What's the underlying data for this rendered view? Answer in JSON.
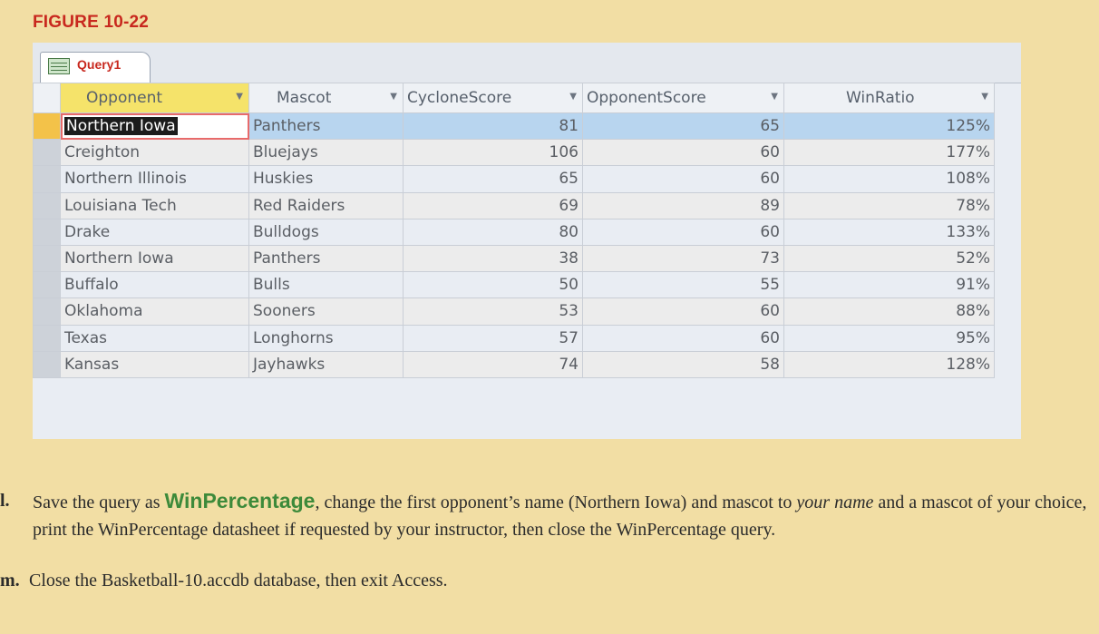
{
  "figure_label": "FIGURE 10-22",
  "tab": {
    "label": "Query1",
    "icon": "query-icon"
  },
  "columns": [
    {
      "label": "Opponent"
    },
    {
      "label": "Mascot"
    },
    {
      "label": "CycloneScore"
    },
    {
      "label": "OpponentScore"
    },
    {
      "label": "WinRatio"
    }
  ],
  "rows": [
    {
      "opponent": "Northern Iowa",
      "mascot": "Panthers",
      "cyclone": "81",
      "opp": "65",
      "ratio": "125%"
    },
    {
      "opponent": "Creighton",
      "mascot": "Bluejays",
      "cyclone": "106",
      "opp": "60",
      "ratio": "177%"
    },
    {
      "opponent": "Northern Illinois",
      "mascot": "Huskies",
      "cyclone": "65",
      "opp": "60",
      "ratio": "108%"
    },
    {
      "opponent": "Louisiana Tech",
      "mascot": "Red Raiders",
      "cyclone": "69",
      "opp": "89",
      "ratio": "78%"
    },
    {
      "opponent": "Drake",
      "mascot": "Bulldogs",
      "cyclone": "80",
      "opp": "60",
      "ratio": "133%"
    },
    {
      "opponent": "Northern Iowa",
      "mascot": "Panthers",
      "cyclone": "38",
      "opp": "73",
      "ratio": "52%"
    },
    {
      "opponent": "Buffalo",
      "mascot": "Bulls",
      "cyclone": "50",
      "opp": "55",
      "ratio": "91%"
    },
    {
      "opponent": "Oklahoma",
      "mascot": "Sooners",
      "cyclone": "53",
      "opp": "60",
      "ratio": "88%"
    },
    {
      "opponent": "Texas",
      "mascot": "Longhorns",
      "cyclone": "57",
      "opp": "60",
      "ratio": "95%"
    },
    {
      "opponent": "Kansas",
      "mascot": "Jayhawks",
      "cyclone": "74",
      "opp": "58",
      "ratio": "128%"
    }
  ],
  "instructions": {
    "l_marker": "l.",
    "l_pre": "Save the query as ",
    "l_highlight": "WinPercentage",
    "l_mid": ", change the first opponent’s name (Northern Iowa) and mascot to ",
    "l_italic": "your name",
    "l_post": " and a mascot of your choice, print the WinPercentage datasheet if requested by your instructor, then close the WinPercentage query.",
    "m_marker": "m.",
    "m_text": "Close the Basketball-10.accdb database, then exit Access."
  },
  "colors": {
    "accent": "#c8281e",
    "highlight": "#3d8a3a",
    "selected_row": "#b8d5ef",
    "page": "#f2dea4"
  }
}
